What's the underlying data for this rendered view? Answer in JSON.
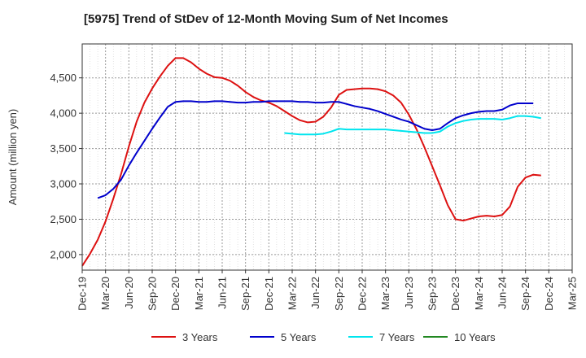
{
  "chart_data": {
    "type": "line",
    "title": "[5975]  Trend of StDev of 12-Month Moving Sum of Net Incomes",
    "xlabel": "",
    "ylabel": "Amount (million yen)",
    "ylim": [
      1780,
      4980
    ],
    "yticks": [
      2000,
      2500,
      3000,
      3500,
      4000,
      4500
    ],
    "ytick_labels": [
      "2,000",
      "2,500",
      "3,000",
      "3,500",
      "4,000",
      "4,500"
    ],
    "xticks": [
      "Dec-19",
      "Mar-20",
      "Jun-20",
      "Sep-20",
      "Dec-20",
      "Mar-21",
      "Jun-21",
      "Sep-21",
      "Dec-21",
      "Mar-22",
      "Jun-22",
      "Sep-22",
      "Dec-22",
      "Mar-23",
      "Jun-23",
      "Sep-23",
      "Dec-23",
      "Mar-24",
      "Jun-24",
      "Sep-24",
      "Dec-24",
      "Mar-25"
    ],
    "x_start": "Dec-19",
    "grid": true,
    "legend_position": "bottom",
    "series": [
      {
        "name": "3 Years",
        "color": "#dd1111",
        "values": [
          1840,
          2010,
          2210,
          2470,
          2790,
          3140,
          3530,
          3880,
          4150,
          4350,
          4520,
          4670,
          4780,
          4780,
          4720,
          4630,
          4560,
          4510,
          4500,
          4460,
          4390,
          4300,
          4230,
          4180,
          4150,
          4100,
          4030,
          3960,
          3900,
          3870,
          3880,
          3950,
          4080,
          4260,
          4330,
          4340,
          4350,
          4350,
          4340,
          4310,
          4250,
          4150,
          3980,
          3770,
          3520,
          3250,
          2980,
          2700,
          2500,
          2480,
          2510,
          2540,
          2550,
          2540,
          2560,
          2680,
          2960,
          3090,
          3130,
          3120
        ]
      },
      {
        "name": "5 Years",
        "color": "#0000cc",
        "values": [
          null,
          null,
          2800,
          2840,
          2930,
          3060,
          3260,
          3440,
          3610,
          3780,
          3940,
          4090,
          4160,
          4170,
          4170,
          4160,
          4160,
          4170,
          4170,
          4160,
          4150,
          4150,
          4160,
          4160,
          4170,
          4170,
          4170,
          4170,
          4160,
          4160,
          4150,
          4150,
          4160,
          4160,
          4130,
          4100,
          4080,
          4060,
          4030,
          3990,
          3950,
          3910,
          3880,
          3830,
          3780,
          3760,
          3780,
          3860,
          3930,
          3970,
          4000,
          4020,
          4030,
          4030,
          4050,
          4110,
          4140,
          4140,
          4140,
          null
        ]
      },
      {
        "name": "7 Years",
        "color": "#00e5ee",
        "values": [
          null,
          null,
          null,
          null,
          null,
          null,
          null,
          null,
          null,
          null,
          null,
          null,
          null,
          null,
          null,
          null,
          null,
          null,
          null,
          null,
          null,
          null,
          null,
          null,
          null,
          null,
          3720,
          3710,
          3700,
          3700,
          3700,
          3710,
          3740,
          3780,
          3770,
          3770,
          3770,
          3770,
          3770,
          3770,
          3760,
          3750,
          3740,
          3730,
          3720,
          3720,
          3740,
          3810,
          3860,
          3890,
          3910,
          3920,
          3920,
          3920,
          3910,
          3930,
          3960,
          3960,
          3950,
          3930
        ]
      },
      {
        "name": "10 Years",
        "color": "#228822",
        "values": []
      }
    ]
  }
}
